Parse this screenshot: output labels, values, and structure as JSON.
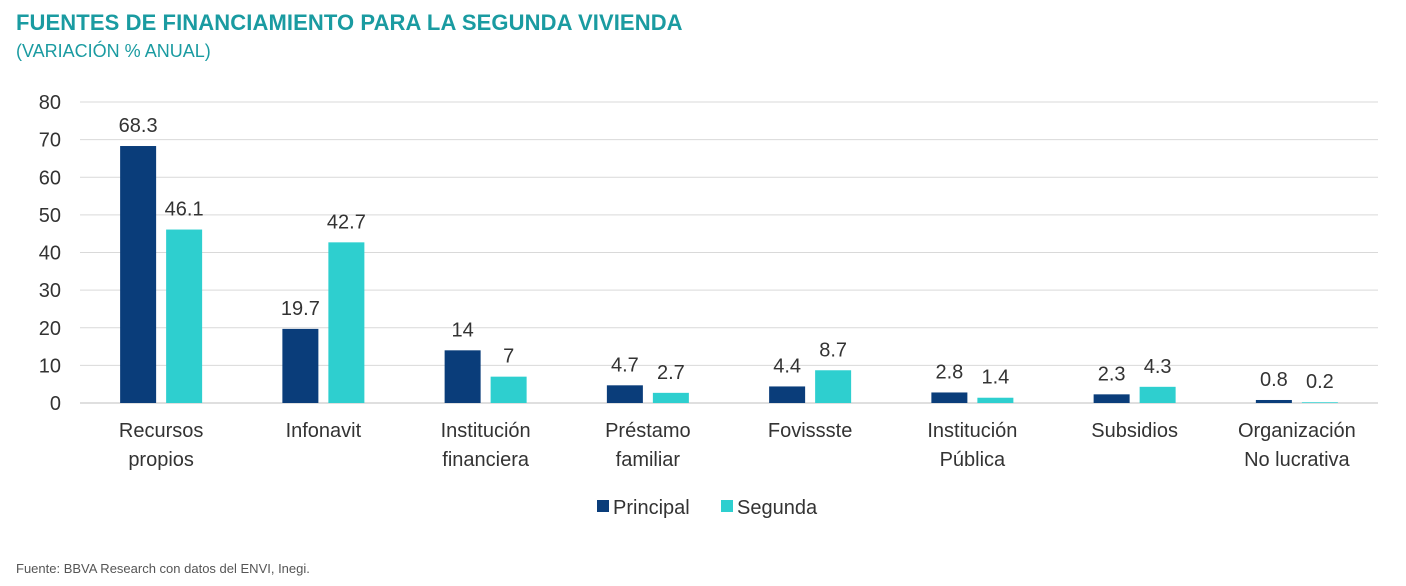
{
  "header": {
    "title": "FUENTES DE FINANCIAMIENTO PARA LA SEGUNDA VIVIENDA",
    "subtitle": "(VARIACIÓN % ANUAL)"
  },
  "footer": {
    "source": "Fuente: BBVA Research con datos del ENVI, Inegi."
  },
  "chart_data": {
    "type": "bar",
    "title": "FUENTES DE FINANCIAMIENTO PARA LA SEGUNDA VIVIENDA",
    "subtitle": "(VARIACIÓN % ANUAL)",
    "categories": [
      [
        "Recursos",
        "propios"
      ],
      [
        "Infonavit"
      ],
      [
        "Institución",
        "financiera"
      ],
      [
        "Préstamo",
        "familiar"
      ],
      [
        "Fovissste"
      ],
      [
        "Institución",
        "Pública"
      ],
      [
        "Subsidios"
      ],
      [
        "Organización",
        "No lucrativa"
      ]
    ],
    "series": [
      {
        "name": "Principal",
        "color": "#0a3d7a",
        "values": [
          68.3,
          19.7,
          14,
          4.7,
          4.4,
          2.8,
          2.3,
          0.8
        ]
      },
      {
        "name": "Segunda",
        "color": "#2ecfcf",
        "values": [
          46.1,
          42.7,
          7,
          2.7,
          8.7,
          1.4,
          4.3,
          0.2
        ]
      }
    ],
    "ylim": [
      0,
      80
    ],
    "yticks": [
      0,
      10,
      20,
      30,
      40,
      50,
      60,
      70,
      80
    ],
    "grid": true,
    "legend_position": "bottom"
  }
}
